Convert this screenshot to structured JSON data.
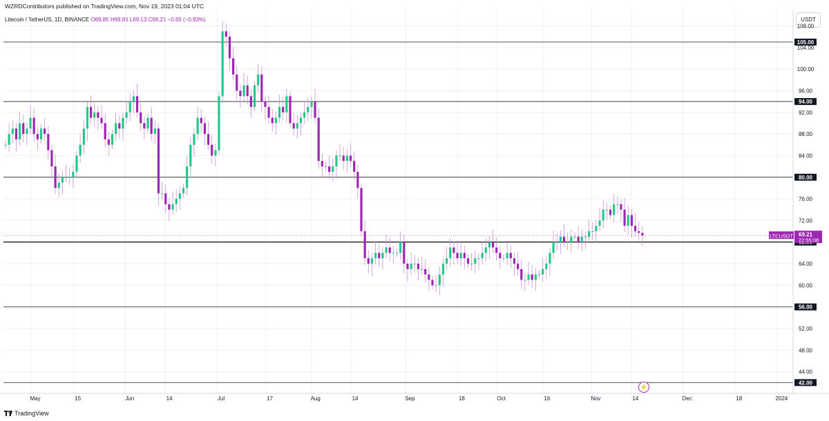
{
  "header": {
    "published": "WZRDContributors published on TradingView.com, Nov 19, 2023 01:04 UTC"
  },
  "legend": {
    "symbol": "Litecoin / TetherUS, 1D, BINANCE",
    "ohlc": "O69.85 H69.86 L69.13 C69.21 −0.65 (−0.93%)"
  },
  "currency_button": "USDT",
  "footer": {
    "brand": "TradingView"
  },
  "colors": {
    "up": "#22c98a",
    "down": "#9c27b0",
    "wick": "#c98fd6",
    "grid": "#eef0f3",
    "level_line": "#3a3a3a",
    "price_tag": "#9c27b0"
  },
  "icons": {
    "lightning": "lightning-icon",
    "logo": "tradingview-logo-icon"
  },
  "chart_data": {
    "type": "candlestick",
    "symbol": "LTCUSDT",
    "last_price": "69.21",
    "countdown": "22:55:08",
    "ylim": [
      40,
      111
    ],
    "y_ticks": [
      "44.00",
      "48.00",
      "52.00",
      "56.00",
      "60.00",
      "64.00",
      "68.00",
      "72.00",
      "76.00",
      "80.00",
      "84.00",
      "88.00",
      "92.00",
      "96.00",
      "100.00",
      "104.00",
      "108.00"
    ],
    "x_ticks": [
      {
        "label": "May",
        "day": 0
      },
      {
        "label": "15",
        "day": 14
      },
      {
        "label": "Jun",
        "day": 31
      },
      {
        "label": "14",
        "day": 44
      },
      {
        "label": "Jul",
        "day": 61
      },
      {
        "label": "17",
        "day": 77
      },
      {
        "label": "Aug",
        "day": 92
      },
      {
        "label": "14",
        "day": 105
      },
      {
        "label": "Sep",
        "day": 123
      },
      {
        "label": "18",
        "day": 140
      },
      {
        "label": "Oct",
        "day": 153
      },
      {
        "label": "16",
        "day": 168
      },
      {
        "label": "Nov",
        "day": 184
      },
      {
        "label": "14",
        "day": 197
      },
      {
        "label": "Dec",
        "day": 214
      },
      {
        "label": "18",
        "day": 231
      },
      {
        "label": "2024",
        "day": 245
      }
    ],
    "horizontal_levels": [
      {
        "value": 105,
        "label": "105.00"
      },
      {
        "value": 94,
        "label": "94.00"
      },
      {
        "value": 80,
        "label": "80.00"
      },
      {
        "value": 68,
        "label": "68.00"
      },
      {
        "value": 56,
        "label": "56.00"
      },
      {
        "value": 42,
        "label": "42.00"
      }
    ],
    "closes": [
      86,
      88,
      89,
      87,
      90,
      88,
      89,
      91,
      88,
      87,
      89,
      88,
      85,
      82,
      78,
      79,
      80,
      80,
      80,
      81,
      84,
      86,
      89,
      93,
      91,
      92,
      91,
      90,
      87,
      86,
      88,
      90,
      89,
      91,
      92,
      94,
      95,
      92,
      90,
      89,
      91,
      88,
      89,
      77,
      77,
      75,
      74,
      75,
      76,
      77,
      78,
      82,
      86,
      88,
      91,
      90,
      88,
      86,
      84,
      85,
      95,
      107,
      106,
      102,
      99,
      96,
      95,
      97,
      95,
      93,
      97,
      99,
      94,
      93,
      91,
      90,
      91,
      93,
      92,
      95,
      90,
      89,
      90,
      91,
      92,
      93,
      94,
      91,
      83,
      82,
      82,
      81,
      82,
      84,
      84,
      83,
      84,
      83,
      81,
      78,
      70,
      65,
      64,
      65,
      66,
      65,
      66,
      67,
      66,
      66,
      66,
      68,
      64,
      63,
      64,
      64,
      63,
      63,
      62,
      61,
      60,
      60,
      62,
      64,
      65,
      67,
      66,
      65,
      66,
      65,
      64,
      64,
      65,
      65,
      66,
      67,
      68,
      67,
      66,
      65,
      65,
      66,
      65,
      64,
      63,
      61,
      61,
      62,
      61,
      62,
      62,
      63,
      64,
      66,
      68,
      68,
      69,
      68,
      68,
      69,
      69,
      68,
      69,
      69,
      70,
      70,
      71,
      72,
      74,
      74,
      73,
      75,
      75,
      74,
      71,
      73,
      71,
      70,
      69.7,
      69.21
    ],
    "start_price": 86
  }
}
